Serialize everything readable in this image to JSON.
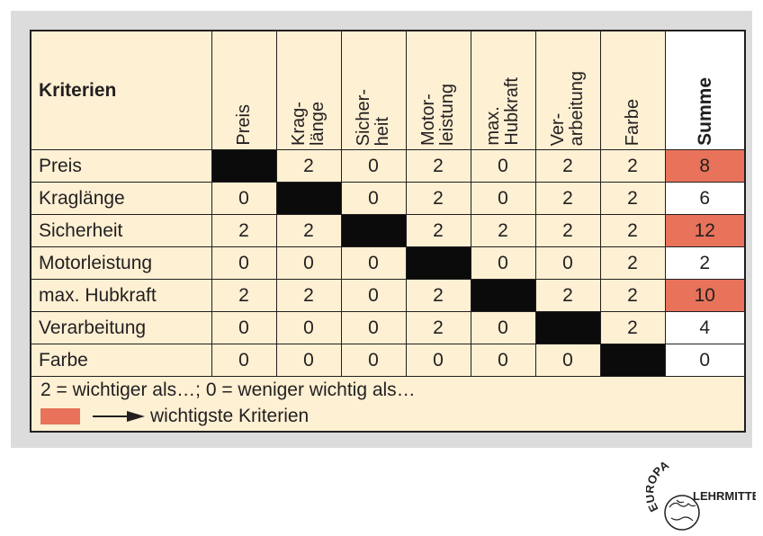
{
  "table": {
    "corner_label": "Kriterien",
    "columns": [
      "Preis",
      "Krag-\nlänge",
      "Sicher-\nheit",
      "Motor-\nleistung",
      "max.\nHubkraft",
      "Ver-\narbeitung",
      "Farbe"
    ],
    "sum_label": "Summe",
    "rows": [
      {
        "label": "Preis",
        "values": [
          "",
          "2",
          "0",
          "2",
          "0",
          "2",
          "2"
        ],
        "sum": "8"
      },
      {
        "label": "Kraglänge",
        "values": [
          "0",
          "",
          "0",
          "2",
          "0",
          "2",
          "2"
        ],
        "sum": "6"
      },
      {
        "label": "Sicherheit",
        "values": [
          "2",
          "2",
          "",
          "2",
          "2",
          "2",
          "2"
        ],
        "sum": "12"
      },
      {
        "label": "Motorleistung",
        "values": [
          "0",
          "0",
          "0",
          "",
          "0",
          "0",
          "2"
        ],
        "sum": "2"
      },
      {
        "label": "max. Hubkraft",
        "values": [
          "2",
          "2",
          "0",
          "2",
          "",
          "2",
          "2"
        ],
        "sum": "10"
      },
      {
        "label": "Verarbeitung",
        "values": [
          "0",
          "0",
          "0",
          "2",
          "0",
          "",
          "2"
        ],
        "sum": "4"
      },
      {
        "label": "Farbe",
        "values": [
          "0",
          "0",
          "0",
          "0",
          "0",
          "0",
          ""
        ],
        "sum": "0"
      }
    ],
    "highlighted_rows": [
      0,
      2,
      4
    ]
  },
  "legend": {
    "explanation": "2 = wichtiger als…; 0 = weniger wichtig als…",
    "highlight_text": "wichtigste Kriterien",
    "highlight_color": "#e8735a"
  },
  "logo": {
    "top_text": "EUROPA",
    "side_text": "LEHRMITTEL"
  },
  "colors": {
    "panel_background": "#fdf0d3",
    "frame_background": "#dcdcdc",
    "diagonal_fill": "#0b0b0b",
    "highlight": "#e8735a"
  }
}
